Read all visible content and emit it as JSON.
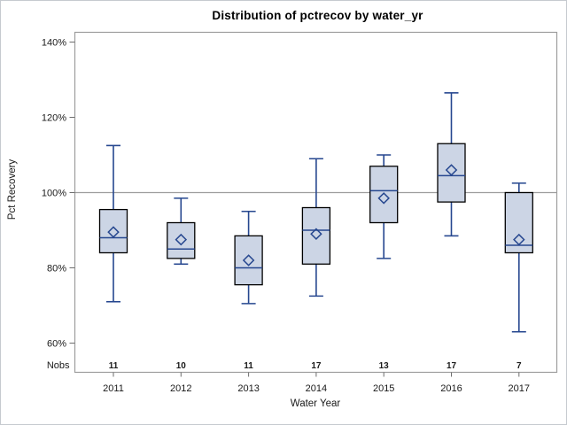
{
  "title": "Distribution of pctrecov by water_yr",
  "chart_data": {
    "type": "boxplot",
    "title": "Distribution of pctrecov by water_yr",
    "xlabel": "Water Year",
    "ylabel": "Pct Recovery",
    "y_ticks": [
      140,
      120,
      100,
      80,
      60
    ],
    "y_tick_suffix": "%",
    "ylim": [
      52,
      143
    ],
    "reference_line": 100,
    "grid": "single horizontal reference line at 100%",
    "legend": "none",
    "nobs_row_label": "Nobs",
    "categories": [
      "2011",
      "2012",
      "2013",
      "2014",
      "2015",
      "2016",
      "2017"
    ],
    "nobs": [
      11,
      10,
      11,
      17,
      13,
      17,
      7
    ],
    "series": [
      {
        "category": "2011",
        "min": 71,
        "q1": 84,
        "median": 88,
        "mean": 89.5,
        "q3": 95.5,
        "max": 112.5
      },
      {
        "category": "2012",
        "min": 81,
        "q1": 82.5,
        "median": 85,
        "mean": 87.5,
        "q3": 92,
        "max": 98.5
      },
      {
        "category": "2013",
        "min": 70.5,
        "q1": 75.5,
        "median": 80,
        "mean": 82,
        "q3": 88.5,
        "max": 95
      },
      {
        "category": "2014",
        "min": 72.5,
        "q1": 81,
        "median": 90,
        "mean": 89,
        "q3": 96,
        "max": 109
      },
      {
        "category": "2015",
        "min": 82.5,
        "q1": 92,
        "median": 100.5,
        "mean": 98.5,
        "q3": 107,
        "max": 110
      },
      {
        "category": "2016",
        "min": 88.5,
        "q1": 97.5,
        "median": 104.5,
        "mean": 106,
        "q3": 113,
        "max": 126.5
      },
      {
        "category": "2017",
        "min": 63,
        "q1": 84,
        "median": 86,
        "mean": 87.5,
        "q3": 100,
        "max": 102.5
      }
    ],
    "colors": {
      "box_fill": "#CCD5E5",
      "box_border": "#000000",
      "line": "#26478F",
      "frame": "#9D9D9D",
      "grid": "#9D9D9D",
      "tick": "#6E6E6E",
      "text": "#1A1A1A"
    }
  }
}
